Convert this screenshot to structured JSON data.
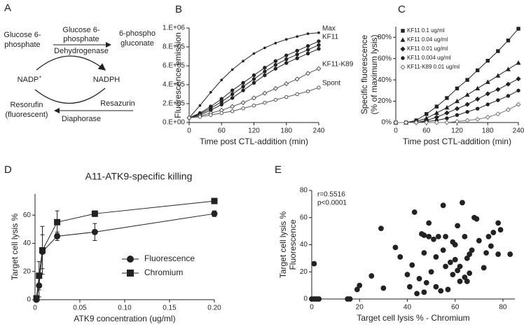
{
  "diagram": {
    "panel_label": "A",
    "substrate": [
      "Glucose 6-",
      "phosphate"
    ],
    "enzyme": [
      "Glucose 6-",
      "phosphate",
      "Dehydrogenase"
    ],
    "product": [
      "6-phospho",
      "gluconate"
    ],
    "cofactor_ox": "NADP",
    "cofactor_ox_sup": "+",
    "cofactor_red": "NADPH",
    "fluor": [
      "Resorufin",
      "(fluorescent)"
    ],
    "substrate2": "Resazurin",
    "enzyme2": "Diaphorase"
  },
  "chart_data": [
    {
      "type": "line",
      "panel_label": "B",
      "ylabel": "Fluorescence emission",
      "xlabel": "Time post CTL-addition (min)",
      "x": [
        0,
        20,
        40,
        60,
        80,
        100,
        120,
        140,
        160,
        180,
        200,
        220,
        240
      ],
      "xlim": [
        0,
        240
      ],
      "xticks": [
        0,
        60,
        120,
        180,
        240
      ],
      "ylim": [
        0,
        1000000
      ],
      "yticks": [
        {
          "value": 0,
          "label": "0.E+00"
        },
        {
          "value": 200000,
          "label": "2.E+05"
        },
        {
          "value": 400000,
          "label": "4.E+05"
        },
        {
          "value": 600000,
          "label": "6.E+05"
        },
        {
          "value": 800000,
          "label": "8.E+05"
        },
        {
          "value": 1000000,
          "label": "1.E+06"
        }
      ],
      "direct_labels": true,
      "series": [
        {
          "name": "Max",
          "color": "#222222",
          "marker": "dot",
          "values": [
            50000,
            180000,
            320000,
            450000,
            560000,
            650000,
            730000,
            790000,
            840000,
            880000,
            910000,
            940000,
            950000
          ]
        },
        {
          "name": "KF11",
          "color": "#222222",
          "marker": "circle",
          "values": [
            50000,
            100000,
            170000,
            250000,
            340000,
            420000,
            500000,
            580000,
            650000,
            710000,
            760000,
            810000,
            860000
          ]
        },
        {
          "color": "#222222",
          "marker": "circle",
          "values": [
            50000,
            90000,
            150000,
            220000,
            300000,
            380000,
            460000,
            540000,
            610000,
            670000,
            720000,
            770000,
            820000
          ]
        },
        {
          "color": "#222222",
          "marker": "circle",
          "values": [
            50000,
            80000,
            130000,
            190000,
            260000,
            340000,
            420000,
            500000,
            570000,
            630000,
            680000,
            730000,
            780000
          ]
        },
        {
          "name": "KF11-K89",
          "color": "#555555",
          "marker": "diamond-open",
          "values": [
            50000,
            70000,
            100000,
            130000,
            170000,
            210000,
            260000,
            310000,
            360000,
            410000,
            460000,
            520000,
            570000
          ]
        },
        {
          "name": "Spont",
          "color": "#555555",
          "marker": "circle-open",
          "values": [
            50000,
            60000,
            80000,
            100000,
            120000,
            150000,
            180000,
            210000,
            240000,
            270000,
            300000,
            330000,
            370000
          ]
        }
      ]
    },
    {
      "type": "line",
      "panel_label": "C",
      "ylabel": [
        "Specific fluorescence",
        "(% of maximum lysis)"
      ],
      "xlabel": "Time post CTL-addition (min)",
      "x": [
        0,
        20,
        40,
        60,
        80,
        100,
        120,
        140,
        160,
        180,
        200,
        220,
        240
      ],
      "xlim": [
        0,
        240
      ],
      "xticks": [
        0,
        60,
        120,
        180,
        240
      ],
      "ylim": [
        0,
        90
      ],
      "yticks": [
        {
          "value": 0,
          "label": "0%"
        },
        {
          "value": 20,
          "label": "20%"
        },
        {
          "value": 40,
          "label": "40%"
        },
        {
          "value": 60,
          "label": "60%"
        },
        {
          "value": 80,
          "label": "80%"
        }
      ],
      "legend": "upper left",
      "series": [
        {
          "name": "KF11 0.1 ug/ml",
          "color": "#222222",
          "marker": "square",
          "values": [
            0,
            0,
            2,
            8,
            15,
            23,
            32,
            40,
            49,
            58,
            67,
            77,
            88
          ]
        },
        {
          "name": "KF11 0.04 ug/ml",
          "color": "#222222",
          "marker": "triangle",
          "values": [
            0,
            0,
            1,
            4,
            9,
            14,
            20,
            26,
            32,
            38,
            44,
            50,
            56
          ]
        },
        {
          "name": "KF11 0.01 ug/ml",
          "color": "#222222",
          "marker": "diamond",
          "values": [
            0,
            0,
            0,
            2,
            5,
            9,
            13,
            17,
            22,
            27,
            31,
            36,
            41
          ]
        },
        {
          "name": "KF11 0.004 ug/ml",
          "color": "#222222",
          "marker": "circle",
          "values": [
            0,
            0,
            0,
            1,
            2,
            4,
            7,
            10,
            13,
            17,
            21,
            25,
            30
          ]
        },
        {
          "name": "KF11-K89 0.01 ug/ml",
          "color": "#777777",
          "marker": "diamond-open",
          "values": [
            0,
            0,
            0,
            0,
            0,
            0,
            1,
            2,
            3,
            5,
            8,
            12,
            17
          ]
        }
      ]
    },
    {
      "type": "line",
      "panel_label": "D",
      "title": "A11-ATK9-specific killing",
      "ylabel": "Target cell lysis %",
      "xlabel": "ATK9 concentration (ug/ml)",
      "x": [
        0.0016,
        0.0045,
        0.0082,
        0.0247,
        0.0667,
        0.2
      ],
      "xlim": [
        0,
        0.2
      ],
      "xticks": [
        0,
        0.05,
        {
          "value": 0.1,
          "label": "0.10"
        },
        0.15,
        {
          "value": 0.2,
          "label": "0.20"
        }
      ],
      "ylim": [
        0,
        75
      ],
      "yticks": [
        0,
        20,
        40,
        60
      ],
      "legend": "lower right",
      "series": [
        {
          "name": "Fluorescence",
          "color": "#222222",
          "marker": "circle",
          "values": [
            0,
            10,
            34,
            45,
            48,
            61
          ],
          "errors": [
            1,
            8,
            12,
            3,
            6,
            2
          ]
        },
        {
          "name": "Chromium",
          "color": "#222222",
          "marker": "square",
          "values": [
            1,
            17,
            35,
            55,
            61,
            70
          ],
          "errors": [
            2,
            10,
            17,
            8,
            2,
            1
          ]
        }
      ]
    },
    {
      "type": "scatter",
      "panel_label": "E",
      "ylabel": [
        "Target cell lysis %",
        "Fluorescence"
      ],
      "xlabel": "Target cell lysis % - Chromium",
      "annotations": [
        "r=0.5516",
        "p<0.0001"
      ],
      "xlim": [
        0,
        85
      ],
      "xticks": [
        0,
        20,
        40,
        60,
        80
      ],
      "ylim": [
        0,
        80
      ],
      "yticks": [
        0,
        20,
        40,
        60,
        80
      ],
      "color": "#222222",
      "x": [
        0,
        1,
        2,
        3,
        1,
        15,
        16,
        19,
        20,
        25,
        29,
        30,
        35,
        37,
        40,
        41,
        42,
        43,
        45,
        46,
        47,
        47,
        48,
        49,
        50,
        51,
        52,
        53,
        54,
        55,
        55,
        56,
        57,
        58,
        59,
        59,
        60,
        60,
        61,
        61,
        62,
        63,
        64,
        64,
        65,
        65,
        66,
        66,
        67,
        68,
        69,
        70,
        72,
        73,
        74,
        75,
        76,
        78,
        78,
        79,
        83,
        62,
        56,
        49,
        47,
        44,
        52
      ],
      "values": [
        0,
        0,
        0,
        0,
        26,
        0,
        0,
        7,
        10,
        17,
        52,
        8,
        38,
        31,
        18,
        9,
        25,
        64,
        15,
        48,
        47,
        34,
        12,
        46,
        20,
        44,
        9,
        46,
        6,
        69,
        36,
        46,
        7,
        27,
        18,
        42,
        40,
        29,
        54,
        21,
        24,
        71,
        46,
        16,
        13,
        30,
        19,
        33,
        36,
        60,
        59,
        43,
        23,
        34,
        46,
        39,
        49,
        56,
        33,
        51,
        33,
        13,
        24,
        56,
        5,
        4,
        31
      ]
    }
  ]
}
